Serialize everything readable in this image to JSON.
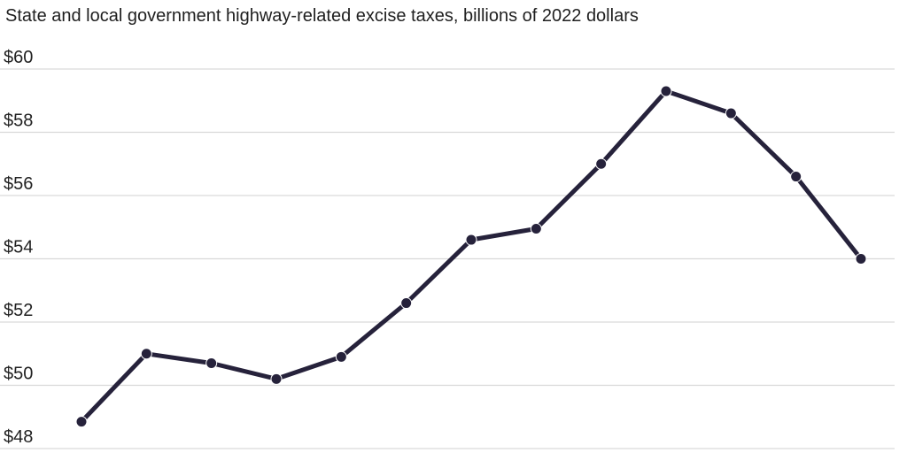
{
  "chart_data": {
    "type": "line",
    "title": "State and local government highway-related excise taxes, billions of 2022 dollars",
    "xlabel": "",
    "ylabel": "",
    "x": [
      1,
      2,
      3,
      4,
      5,
      6,
      7,
      8,
      9,
      10,
      11,
      12,
      13
    ],
    "series": [
      {
        "values": [
          48.85,
          51.0,
          50.7,
          50.2,
          50.9,
          52.6,
          54.6,
          54.95,
          57.0,
          59.3,
          58.6,
          56.6,
          54.0
        ]
      }
    ],
    "ylim": [
      48,
      60
    ],
    "yticks": [
      48,
      50,
      52,
      54,
      56,
      58,
      60
    ],
    "ytick_labels": [
      "$48",
      "$50",
      "$52",
      "$54",
      "$56",
      "$58",
      "$60"
    ],
    "grid": true,
    "legend": "none",
    "colors": {
      "line": "#26223b",
      "grid": "#d9d9d9"
    }
  }
}
